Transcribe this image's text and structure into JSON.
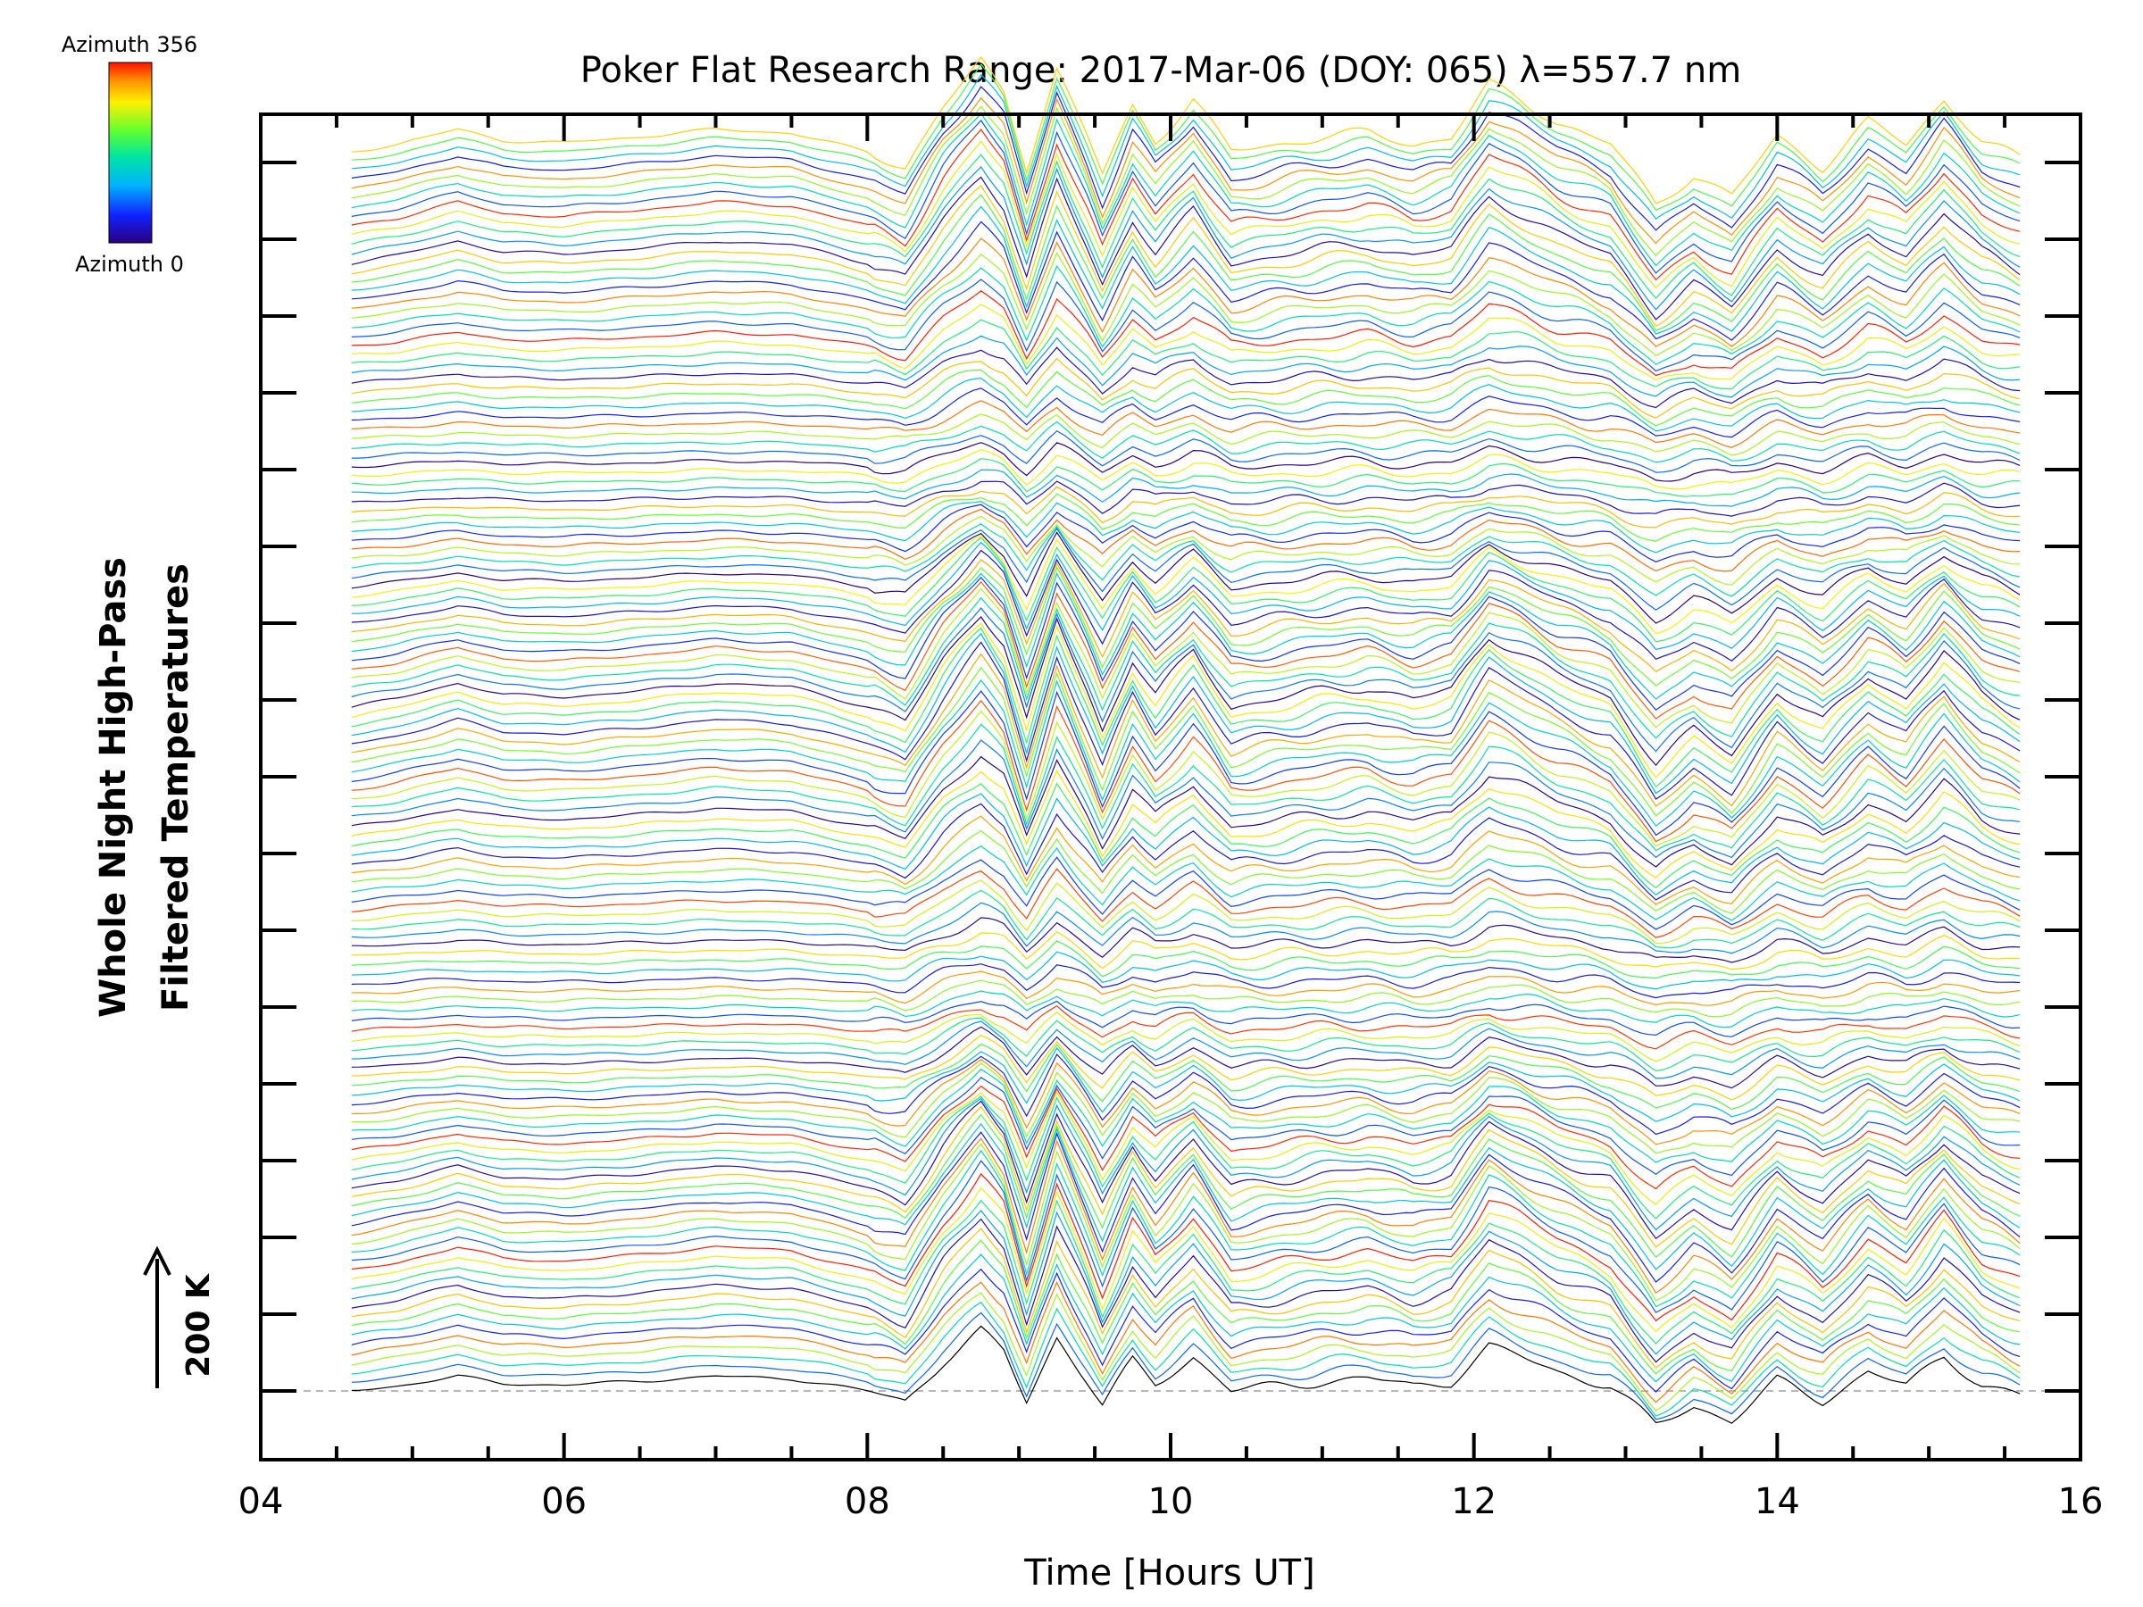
{
  "chart_data": {
    "type": "line",
    "title": "Poker Flat Research Range: 2017-Mar-06 (DOY: 065) λ=557.7 nm",
    "xlabel": "Time [Hours UT]",
    "ylabel_lines": [
      "Whole Night High-Pass",
      "Filtered Temperatures"
    ],
    "xlim": [
      4,
      16
    ],
    "xticks": [
      "04",
      "06",
      "08",
      "10",
      "12",
      "14",
      "16"
    ],
    "x_minor_step": 0.5,
    "y_major_ticks": 16,
    "y_minor_per_major": 4,
    "scale_bar_label": "200 K",
    "colorbar": {
      "top_label": "Azimuth 356",
      "bottom_label": "Azimuth 0",
      "colormap": "rainbow (blue-purple to red)"
    },
    "series_count": 135,
    "baseline_style": "grey dashed line at first trace offset",
    "trace_time_range": [
      4.6,
      15.6
    ],
    "representative_profile": {
      "x": [
        4.6,
        4.9,
        5.3,
        5.6,
        6.0,
        6.5,
        7.0,
        7.5,
        8.0,
        8.25,
        8.5,
        8.75,
        8.9,
        9.05,
        9.25,
        9.45,
        9.55,
        9.75,
        9.9,
        10.15,
        10.4,
        10.7,
        11.0,
        11.3,
        11.6,
        11.85,
        12.1,
        12.3,
        12.55,
        12.9,
        13.2,
        13.45,
        13.7,
        14.0,
        14.3,
        14.6,
        14.85,
        15.1,
        15.35,
        15.6
      ],
      "y": [
        0,
        10,
        30,
        15,
        12,
        20,
        30,
        25,
        0,
        -20,
        60,
        120,
        80,
        -20,
        110,
        20,
        -30,
        60,
        15,
        70,
        0,
        10,
        20,
        25,
        10,
        20,
        90,
        70,
        40,
        10,
        -70,
        -30,
        -60,
        20,
        -20,
        40,
        10,
        70,
        15,
        -10
      ]
    }
  }
}
